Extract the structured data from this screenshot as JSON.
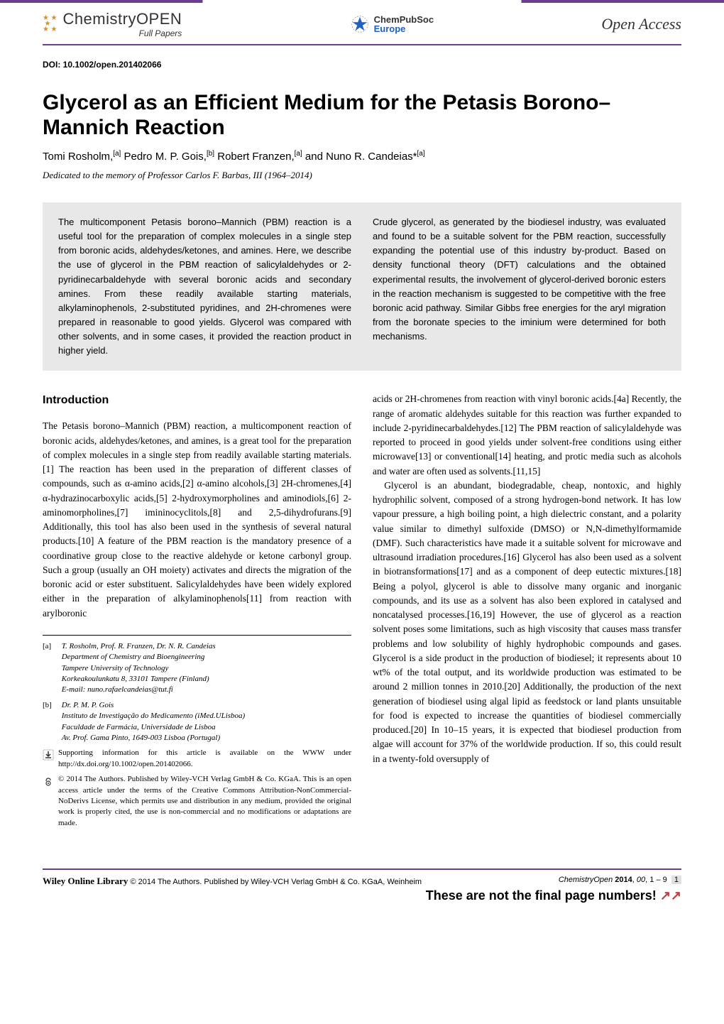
{
  "header": {
    "logo_left_title": "ChemistryOPEN",
    "logo_left_sub": "Full Papers",
    "logo_center_top": "ChemPubSoc",
    "logo_center_bottom": "Europe",
    "open_access": "Open Access"
  },
  "doi": "DOI: 10.1002/open.201402066",
  "title": "Glycerol as an Efficient Medium for the Petasis Borono–Mannich Reaction",
  "authors_html": "Tomi Rosholm,<sup>[a]</sup> Pedro M. P. Gois,<sup>[b]</sup> Robert Franzen,<sup>[a]</sup> and Nuno R. Candeias*<sup>[a]</sup>",
  "dedication": "Dedicated to the memory of Professor Carlos F. Barbas, III (1964–2014)",
  "abstract": {
    "left": "The multicomponent Petasis borono–Mannich (PBM) reaction is a useful tool for the preparation of complex molecules in a single step from boronic acids, aldehydes/ketones, and amines. Here, we describe the use of glycerol in the PBM reaction of salicylaldehydes or 2-pyridinecarbaldehyde with several boronic acids and secondary amines. From these readily available starting materials, alkylaminophenols, 2-substituted pyridines, and 2H-chromenes were prepared in reasonable to good yields. Glycerol was compared with other solvents, and in some cases, it provided the reaction product in higher yield.",
    "right": "Crude glycerol, as generated by the biodiesel industry, was evaluated and found to be a suitable solvent for the PBM reaction, successfully expanding the potential use of this industry by-product. Based on density functional theory (DFT) calculations and the obtained experimental results, the involvement of glycerol-derived boronic esters in the reaction mechanism is suggested to be competitive with the free boronic acid pathway. Similar Gibbs free energies for the aryl migration from the boronate species to the iminium were determined for both mechanisms."
  },
  "introduction_heading": "Introduction",
  "body": {
    "left_p1": "The Petasis borono–Mannich (PBM) reaction, a multicomponent reaction of boronic acids, aldehydes/ketones, and amines, is a great tool for the preparation of complex molecules in a single step from readily available starting materials.[1] The reaction has been used in the preparation of different classes of compounds, such as α-amino acids,[2] α-amino alcohols,[3] 2H-chromenes,[4] α-hydrazinocarboxylic acids,[5] 2-hydroxymorpholines and aminodiols,[6] 2-aminomorpholines,[7] imininocyclitols,[8] and 2,5-dihydrofurans.[9] Additionally, this tool has also been used in the synthesis of several natural products.[10] A feature of the PBM reaction is the mandatory presence of a coordinative group close to the reactive aldehyde or ketone carbonyl group. Such a group (usually an OH moiety) activates and directs the migration of the boronic acid or ester substituent. Salicylaldehydes have been widely explored either in the preparation of alkylaminophenols[11] from reaction with arylboronic",
    "right_p1": "acids or 2H-chromenes from reaction with vinyl boronic acids.[4a] Recently, the range of aromatic aldehydes suitable for this reaction was further expanded to include 2-pyridinecarbaldehydes.[12] The PBM reaction of salicylaldehyde was reported to proceed in good yields under solvent-free conditions using either microwave[13] or conventional[14] heating, and protic media such as alcohols and water are often used as solvents.[11,15]",
    "right_p2": "Glycerol is an abundant, biodegradable, cheap, nontoxic, and highly hydrophilic solvent, composed of a strong hydrogen-bond network. It has low vapour pressure, a high boiling point, a high dielectric constant, and a polarity value similar to dimethyl sulfoxide (DMSO) or N,N-dimethylformamide (DMF). Such characteristics have made it a suitable solvent for microwave and ultrasound irradiation procedures.[16] Glycerol has also been used as a solvent in biotransformations[17] and as a component of deep eutectic mixtures.[18] Being a polyol, glycerol is able to dissolve many organic and inorganic compounds, and its use as a solvent has also been explored in catalysed and noncatalysed processes.[16,19] However, the use of glycerol as a reaction solvent poses some limitations, such as high viscosity that causes mass transfer problems and low solubility of highly hydrophobic compounds and gases. Glycerol is a side product in the production of biodiesel; it represents about 10 wt% of the total output, and its worldwide production was estimated to be around 2 million tonnes in 2010.[20] Additionally, the production of the next generation of biodiesel using algal lipid as feedstock or land plants unsuitable for food is expected to increase the quantities of biodiesel commercially produced.[20] In 10–15 years, it is expected that biodiesel production from algae will account for 37% of the worldwide production. If so, this could result in a twenty-fold oversupply of"
  },
  "affiliations": {
    "a": {
      "label": "[a]",
      "names": "T. Rosholm, Prof. R. Franzen, Dr. N. R. Candeias",
      "line1": "Department of Chemistry and Bioengineering",
      "line2": "Tampere University of Technology",
      "line3": "Korkeakoulunkatu 8, 33101 Tampere (Finland)",
      "email": "E-mail: nuno.rafaelcandeias@tut.fi"
    },
    "b": {
      "label": "[b]",
      "names": "Dr. P. M. P. Gois",
      "line1": "Instituto de Investigação do Medicamento (iMed.ULisboa)",
      "line2": "Faculdade de Farmácia, Universidade de Lisboa",
      "line3": "Av. Prof. Gama Pinto, 1649-003 Lisboa (Portugal)"
    },
    "supporting": "Supporting information for this article is available on the WWW under http://dx.doi.org/10.1002/open.201402066.",
    "license": "© 2014 The Authors. Published by Wiley-VCH Verlag GmbH & Co. KGaA. This is an open access article under the terms of the Creative Commons Attribution-NonCommercial-NoDerivs License, which permits use and distribution in any medium, provided the original work is properly cited, the use is non-commercial and no modifications or adaptations are made."
  },
  "footer": {
    "wol": "Wiley Online Library",
    "copyright": "© 2014 The Authors. Published by Wiley-VCH Verlag GmbH & Co. KGaA, Weinheim",
    "citation_journal": "ChemistryOpen",
    "citation_year": "2014",
    "citation_vol": "00",
    "citation_pages": "1 – 9",
    "pagenum": "1",
    "not_final": "These are not the final page numbers!",
    "arrows": "↗↗"
  },
  "colors": {
    "purple": "#6b3e91",
    "abstract_bg": "#e8e8e8",
    "arrows": "#c04040"
  }
}
